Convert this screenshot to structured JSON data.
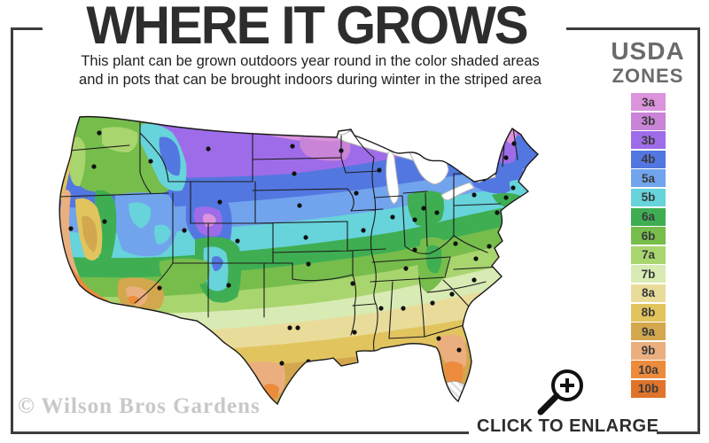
{
  "header": {
    "title": "WHERE IT GROWS",
    "subtitle_line1": "This plant can be grown outdoors year round in the color shaded areas",
    "subtitle_line2": "and in pots that can be brought indoors during winter in the striped area"
  },
  "legend": {
    "title_line1": "USDA",
    "title_line2": "ZONES",
    "zones": [
      {
        "label": "3a",
        "color": "#DB93DB"
      },
      {
        "label": "3b",
        "color": "#C983D7"
      },
      {
        "label": "3b",
        "color": "#9E6CE8"
      },
      {
        "label": "4b",
        "color": "#5377E0"
      },
      {
        "label": "5a",
        "color": "#71A4ED"
      },
      {
        "label": "5b",
        "color": "#67D3DB"
      },
      {
        "label": "6a",
        "color": "#3FAE52"
      },
      {
        "label": "6b",
        "color": "#76BD4C"
      },
      {
        "label": "7a",
        "color": "#A9D56F"
      },
      {
        "label": "7b",
        "color": "#D9EBB4"
      },
      {
        "label": "8a",
        "color": "#E9DC9A"
      },
      {
        "label": "8b",
        "color": "#E2C45F"
      },
      {
        "label": "9a",
        "color": "#D2A74E"
      },
      {
        "label": "9b",
        "color": "#EBAF7F"
      },
      {
        "label": "10a",
        "color": "#ED8B3D"
      },
      {
        "label": "10b",
        "color": "#DF742A"
      }
    ]
  },
  "map": {
    "region": "Continental United States",
    "striped_area": "south Florida tip",
    "outline_color": "#1a1a1a"
  },
  "footer": {
    "watermark": "© Wilson Bros Gardens",
    "enlarge_label": "CLICK TO ENLARGE",
    "icon": "magnifier-plus-icon"
  },
  "frame_color": "#3d3d3d"
}
